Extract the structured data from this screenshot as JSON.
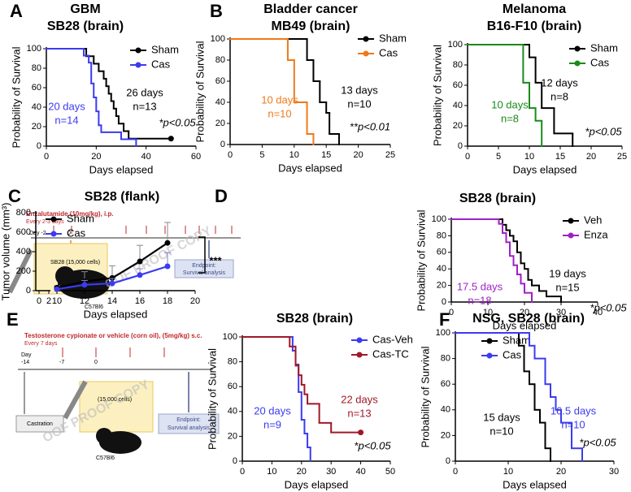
{
  "panel_labels": [
    "A",
    "B",
    "C",
    "D",
    "E",
    "F"
  ],
  "diagrams": [
    {
      "drug": "Enzalutamide (10mg/kg), i.p.",
      "schedule": "Every 2-3 days",
      "day_labels": [
        "Day -2",
        "0"
      ],
      "cells": "SB28 (15,000 cells)",
      "endpoint": [
        "Endpoint:",
        "Survival analysis"
      ],
      "strain": "C57Bl6",
      "watermark": "OOF PROOF COPY"
    },
    {
      "drug": "Testosterone cypionate or vehicle (corn oil), (5mg/kg) s.c.",
      "schedule": "Every 7 days",
      "day_labels": [
        "Day",
        "-14",
        "-7",
        "0"
      ],
      "castration": "Castration",
      "cells": "(15,000 cells)",
      "endpoint": [
        "Endpoint:",
        "Survival analysis"
      ],
      "strain": "C57Bl6",
      "watermark": "OOF PROOF COPY"
    }
  ],
  "chart_data": [
    {
      "type": "survival",
      "title": [
        "GBM",
        "SB28 (brain)"
      ],
      "xlabel": "Days elapsed",
      "ylabel": "Probability of Survival",
      "xlim": [
        0,
        60
      ],
      "xticks": [
        0,
        20,
        40,
        60
      ],
      "ylim": [
        0,
        100
      ],
      "yticks": [
        0,
        20,
        40,
        60,
        80,
        100
      ],
      "series": [
        {
          "name": "Sham",
          "color": "#000000",
          "end_marker": true,
          "x": [
            0,
            16,
            19,
            21,
            23,
            24,
            25,
            26,
            27,
            28,
            29,
            31,
            33,
            50
          ],
          "values": [
            100,
            92.3,
            84.6,
            76.9,
            69.2,
            61.5,
            53.8,
            46.2,
            38.5,
            30.8,
            23.1,
            15.4,
            7.7,
            7.7
          ]
        },
        {
          "name": "Cas",
          "color": "#3b3bf0",
          "x": [
            0,
            15,
            17,
            18,
            19,
            20,
            21,
            22,
            30,
            36
          ],
          "values": [
            100,
            92.9,
            85.7,
            64.3,
            50,
            35.7,
            21.4,
            14.3,
            7.1,
            0
          ]
        }
      ],
      "annotations": [
        {
          "lines": [
            "20 days",
            "n=14"
          ],
          "color": "#3b3bf0"
        },
        {
          "lines": [
            "26 days",
            "n=13"
          ],
          "color": "#000000"
        },
        {
          "lines": [
            "*p<0.05"
          ],
          "color": "#000000"
        }
      ]
    },
    {
      "type": "survival",
      "title": [
        "Bladder cancer",
        "MB49 (brain)"
      ],
      "xlabel": "Days elapsed",
      "ylabel": "Probability of Survival",
      "xlim": [
        0,
        25
      ],
      "xticks": [
        0,
        5,
        10,
        15,
        20,
        25
      ],
      "ylim": [
        0,
        100
      ],
      "yticks": [
        0,
        20,
        40,
        60,
        80,
        100
      ],
      "series": [
        {
          "name": "Sham",
          "color": "#000000",
          "x": [
            0,
            12,
            13,
            14,
            15,
            15.5,
            17
          ],
          "values": [
            100,
            80,
            60,
            40,
            30,
            10,
            0
          ]
        },
        {
          "name": "Cas",
          "color": "#f07818",
          "x": [
            0,
            9,
            10,
            12,
            13
          ],
          "values": [
            100,
            80,
            40,
            10,
            0
          ]
        }
      ],
      "annotations": [
        {
          "lines": [
            "10 days",
            "n=10"
          ],
          "color": "#f07818"
        },
        {
          "lines": [
            "13 days",
            "n=10"
          ],
          "color": "#000000"
        },
        {
          "lines": [
            "**p<0.01"
          ],
          "color": "#000000"
        }
      ]
    },
    {
      "type": "survival",
      "title": [
        "Melanoma",
        "B16-F10 (brain)"
      ],
      "xlabel": "Days elapsed",
      "ylabel": "Probability of Survival",
      "xlim": [
        0,
        25
      ],
      "xticks": [
        0,
        5,
        10,
        15,
        20,
        25
      ],
      "ylim": [
        0,
        100
      ],
      "yticks": [
        0,
        20,
        40,
        60,
        80,
        100
      ],
      "series": [
        {
          "name": "Sham",
          "color": "#000000",
          "x": [
            0,
            10,
            11,
            12,
            14,
            17
          ],
          "values": [
            100,
            87.5,
            62.5,
            37.5,
            12.5,
            0
          ]
        },
        {
          "name": "Cas",
          "color": "#1a8a1a",
          "x": [
            0,
            9,
            10,
            11,
            12
          ],
          "values": [
            100,
            62.5,
            37.5,
            25,
            0
          ]
        }
      ],
      "annotations": [
        {
          "lines": [
            "12 days",
            "n=8"
          ],
          "color": "#000000"
        },
        {
          "lines": [
            "10 days",
            "n=8"
          ],
          "color": "#1a8a1a"
        },
        {
          "lines": [
            "*p<0.05"
          ],
          "color": "#000000"
        }
      ]
    },
    {
      "type": "line",
      "title": [
        "SB28 (flank)"
      ],
      "xlabel": "Days elapsed",
      "ylabel": "Tumor volume (mm³)",
      "xlim": [
        0,
        20
      ],
      "xticks": [
        0,
        2,
        10,
        12,
        14,
        16,
        18,
        20
      ],
      "ylim": [
        0,
        800
      ],
      "yticks": [
        0,
        200,
        400,
        600,
        800
      ],
      "x": [
        10,
        12,
        14,
        16,
        18
      ],
      "series": [
        {
          "name": "Sham",
          "color": "#000000",
          "values": [
            30,
            95,
            130,
            300,
            490
          ],
          "errors": [
            20,
            100,
            125,
            165,
            210
          ]
        },
        {
          "name": "Cas",
          "color": "#3b3bf0",
          "values": [
            15,
            60,
            75,
            160,
            250
          ],
          "errors": [
            10,
            45,
            50,
            65,
            140
          ]
        }
      ],
      "annotations": [
        {
          "lines": [
            "***"
          ],
          "color": "#000000"
        }
      ]
    },
    {
      "type": "survival",
      "title": [
        "SB28 (brain)"
      ],
      "xlabel": "Days elapsed",
      "ylabel": "Probability of Survival",
      "xlim": [
        0,
        40
      ],
      "xticks": [
        0,
        10,
        20,
        30,
        40
      ],
      "ylim": [
        0,
        100
      ],
      "yticks": [
        0,
        20,
        40,
        60,
        80,
        100
      ],
      "series": [
        {
          "name": "Veh",
          "color": "#000000",
          "x": [
            0,
            14,
            15,
            16,
            17,
            18,
            19,
            20,
            21,
            22,
            24,
            26,
            30
          ],
          "values": [
            100,
            93.3,
            86.7,
            80,
            73.3,
            60,
            46.7,
            40,
            26.7,
            20,
            13.3,
            6.7,
            0
          ]
        },
        {
          "name": "Enza",
          "color": "#a020c8",
          "x": [
            0,
            13,
            14,
            15,
            16,
            17,
            18,
            19,
            20,
            22
          ],
          "values": [
            100,
            94.4,
            83.3,
            72.2,
            55.6,
            44.4,
            33.3,
            22.2,
            11.1,
            0
          ]
        }
      ],
      "annotations": [
        {
          "lines": [
            "17.5 days",
            "n=18"
          ],
          "color": "#a020c8"
        },
        {
          "lines": [
            "19 days",
            "n=15"
          ],
          "color": "#000000"
        },
        {
          "lines": [
            "*p<0.05"
          ],
          "color": "#000000"
        }
      ]
    },
    {
      "type": "survival",
      "title": [
        "SB28 (brain)"
      ],
      "xlabel": "Days elapsed",
      "ylabel": "Probability of Survival",
      "xlim": [
        0,
        50
      ],
      "xticks": [
        0,
        10,
        20,
        30,
        40,
        50
      ],
      "ylim": [
        0,
        100
      ],
      "yticks": [
        0,
        20,
        40,
        60,
        80,
        100
      ],
      "series": [
        {
          "name": "Cas-Veh",
          "color": "#3b3bf0",
          "x": [
            0,
            17,
            18,
            19,
            20,
            21,
            22,
            23
          ],
          "values": [
            100,
            88.9,
            77.8,
            55.6,
            33.3,
            22.2,
            11.1,
            0
          ]
        },
        {
          "name": "Cas-TC",
          "color": "#a01828",
          "end_marker": true,
          "x": [
            0,
            16,
            18,
            19,
            20,
            21,
            22,
            26,
            30,
            40
          ],
          "values": [
            100,
            92.3,
            76.9,
            69.2,
            61.5,
            53.8,
            46.2,
            30.8,
            23.1,
            23.1
          ]
        }
      ],
      "annotations": [
        {
          "lines": [
            "20 days",
            "n=9"
          ],
          "color": "#3b3bf0"
        },
        {
          "lines": [
            "22 days",
            "n=13"
          ],
          "color": "#a01828"
        },
        {
          "lines": [
            "*p<0.05"
          ],
          "color": "#000000"
        }
      ]
    },
    {
      "type": "survival",
      "title": [
        "NSG, SB28 (brain)"
      ],
      "xlabel": "Days elapsed",
      "ylabel": "Probability of Survival",
      "xlim": [
        0,
        30
      ],
      "xticks": [
        0,
        10,
        20,
        30
      ],
      "ylim": [
        0,
        100
      ],
      "yticks": [
        0,
        20,
        40,
        60,
        80,
        100
      ],
      "series": [
        {
          "name": "Sham",
          "color": "#000000",
          "x": [
            0,
            12,
            13,
            14,
            15,
            16,
            17,
            18
          ],
          "values": [
            100,
            90,
            70,
            60,
            40,
            30,
            10,
            0
          ]
        },
        {
          "name": "Cas",
          "color": "#3b3bf0",
          "x": [
            0,
            14,
            15,
            17,
            18,
            19,
            20,
            22,
            24
          ],
          "values": [
            100,
            90,
            80,
            60,
            50,
            40,
            30,
            10,
            0
          ]
        }
      ],
      "annotations": [
        {
          "lines": [
            "15 days",
            "n=10"
          ],
          "color": "#000000"
        },
        {
          "lines": [
            "16.5 days",
            "n=10"
          ],
          "color": "#3b3bf0"
        },
        {
          "lines": [
            "*p<0.05"
          ],
          "color": "#000000"
        }
      ]
    }
  ]
}
